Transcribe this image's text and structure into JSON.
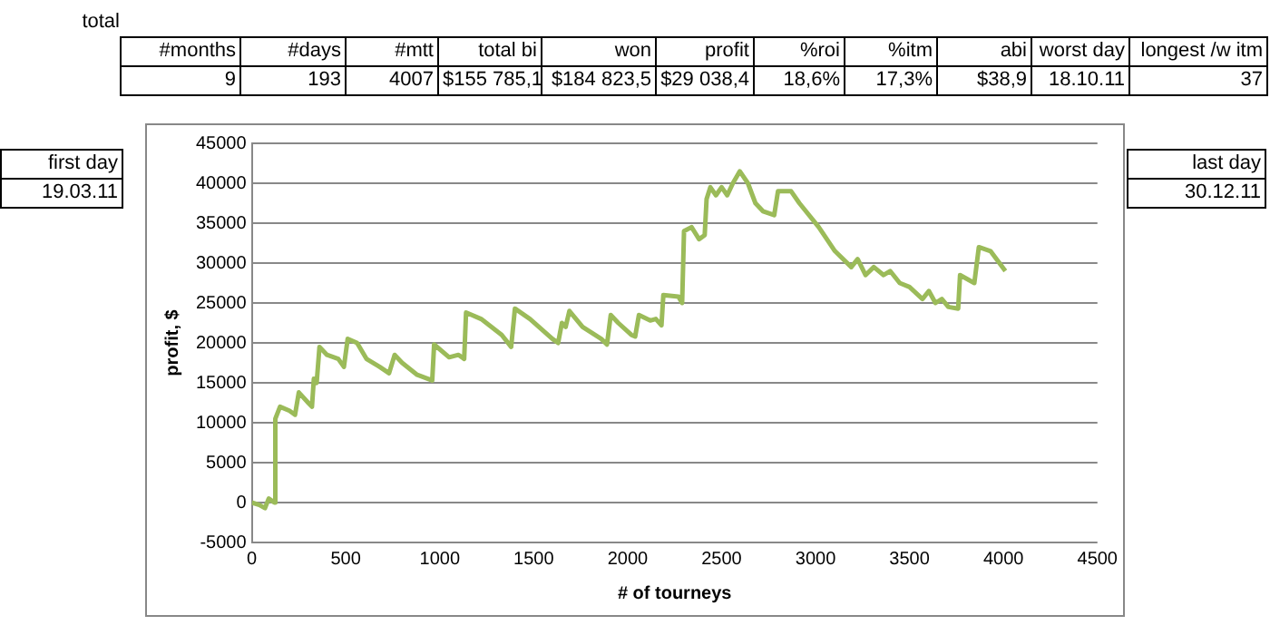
{
  "chart_data": {
    "type": "line",
    "xlabel": "# of tourneys",
    "ylabel": "profit, $",
    "xlim": [
      0,
      4500
    ],
    "xticks": [
      0,
      500,
      1000,
      1500,
      2000,
      2500,
      3000,
      3500,
      4000,
      4500
    ],
    "ylim": [
      -5000,
      45000
    ],
    "yticks": [
      -5000,
      0,
      5000,
      10000,
      15000,
      20000,
      25000,
      30000,
      35000,
      40000,
      45000
    ],
    "grid": "y",
    "legend": false,
    "marker": "none",
    "line_style": "solid",
    "annotations": [
      "total",
      "#months",
      "#days",
      "#mtt",
      "total bi",
      "won",
      "profit",
      "%roi",
      "%itm",
      "abi",
      "worst day",
      "longest /w itm",
      "9",
      "193",
      "4007",
      "$155 785,1",
      "$184 823,5",
      "$29 038,4",
      "18,6%",
      "17,3%",
      "$38,9",
      "18.10.11",
      "37",
      "first day",
      "19.03.11",
      "last day",
      "30.12.11"
    ],
    "series": [
      {
        "color": "#9bbb59",
        "x": [
          0,
          40,
          70,
          90,
          120,
          125,
          150,
          200,
          230,
          250,
          300,
          320,
          330,
          345,
          360,
          400,
          460,
          490,
          510,
          560,
          610,
          680,
          730,
          760,
          800,
          880,
          960,
          970,
          1050,
          1100,
          1130,
          1140,
          1220,
          1330,
          1380,
          1400,
          1480,
          1600,
          1630,
          1650,
          1670,
          1690,
          1760,
          1860,
          1890,
          1910,
          1950,
          2020,
          2040,
          2060,
          2120,
          2150,
          2180,
          2190,
          2270,
          2290,
          2300,
          2340,
          2380,
          2410,
          2420,
          2440,
          2470,
          2500,
          2530,
          2560,
          2597,
          2640,
          2680,
          2720,
          2780,
          2800,
          2870,
          2914,
          3017,
          3103,
          3190,
          3224,
          3266,
          3310,
          3362,
          3397,
          3448,
          3500,
          3569,
          3603,
          3638,
          3672,
          3707,
          3759,
          3769,
          3845,
          3869,
          3931,
          4010
        ],
        "values": [
          0,
          -300,
          -700,
          500,
          0,
          10500,
          12000,
          11500,
          11000,
          13800,
          12500,
          12000,
          15500,
          15000,
          19500,
          18500,
          18000,
          17000,
          20500,
          20000,
          18000,
          17000,
          16200,
          18500,
          17500,
          16000,
          15300,
          19800,
          18200,
          18500,
          18000,
          23800,
          23000,
          21000,
          19500,
          24300,
          23000,
          20500,
          20000,
          22500,
          22000,
          24000,
          22000,
          20500,
          19800,
          23500,
          22500,
          21000,
          20800,
          23500,
          22800,
          23000,
          22200,
          26000,
          25800,
          25000,
          34000,
          34500,
          33000,
          33500,
          38000,
          39500,
          38500,
          39500,
          38500,
          40000,
          41500,
          40000,
          37500,
          36500,
          36000,
          39000,
          39000,
          37500,
          34500,
          31500,
          29500,
          30500,
          28500,
          29500,
          28500,
          29000,
          27500,
          27000,
          25500,
          26500,
          25000,
          25500,
          24500,
          24300,
          28500,
          27500,
          32000,
          31500,
          29000
        ]
      }
    ]
  }
}
